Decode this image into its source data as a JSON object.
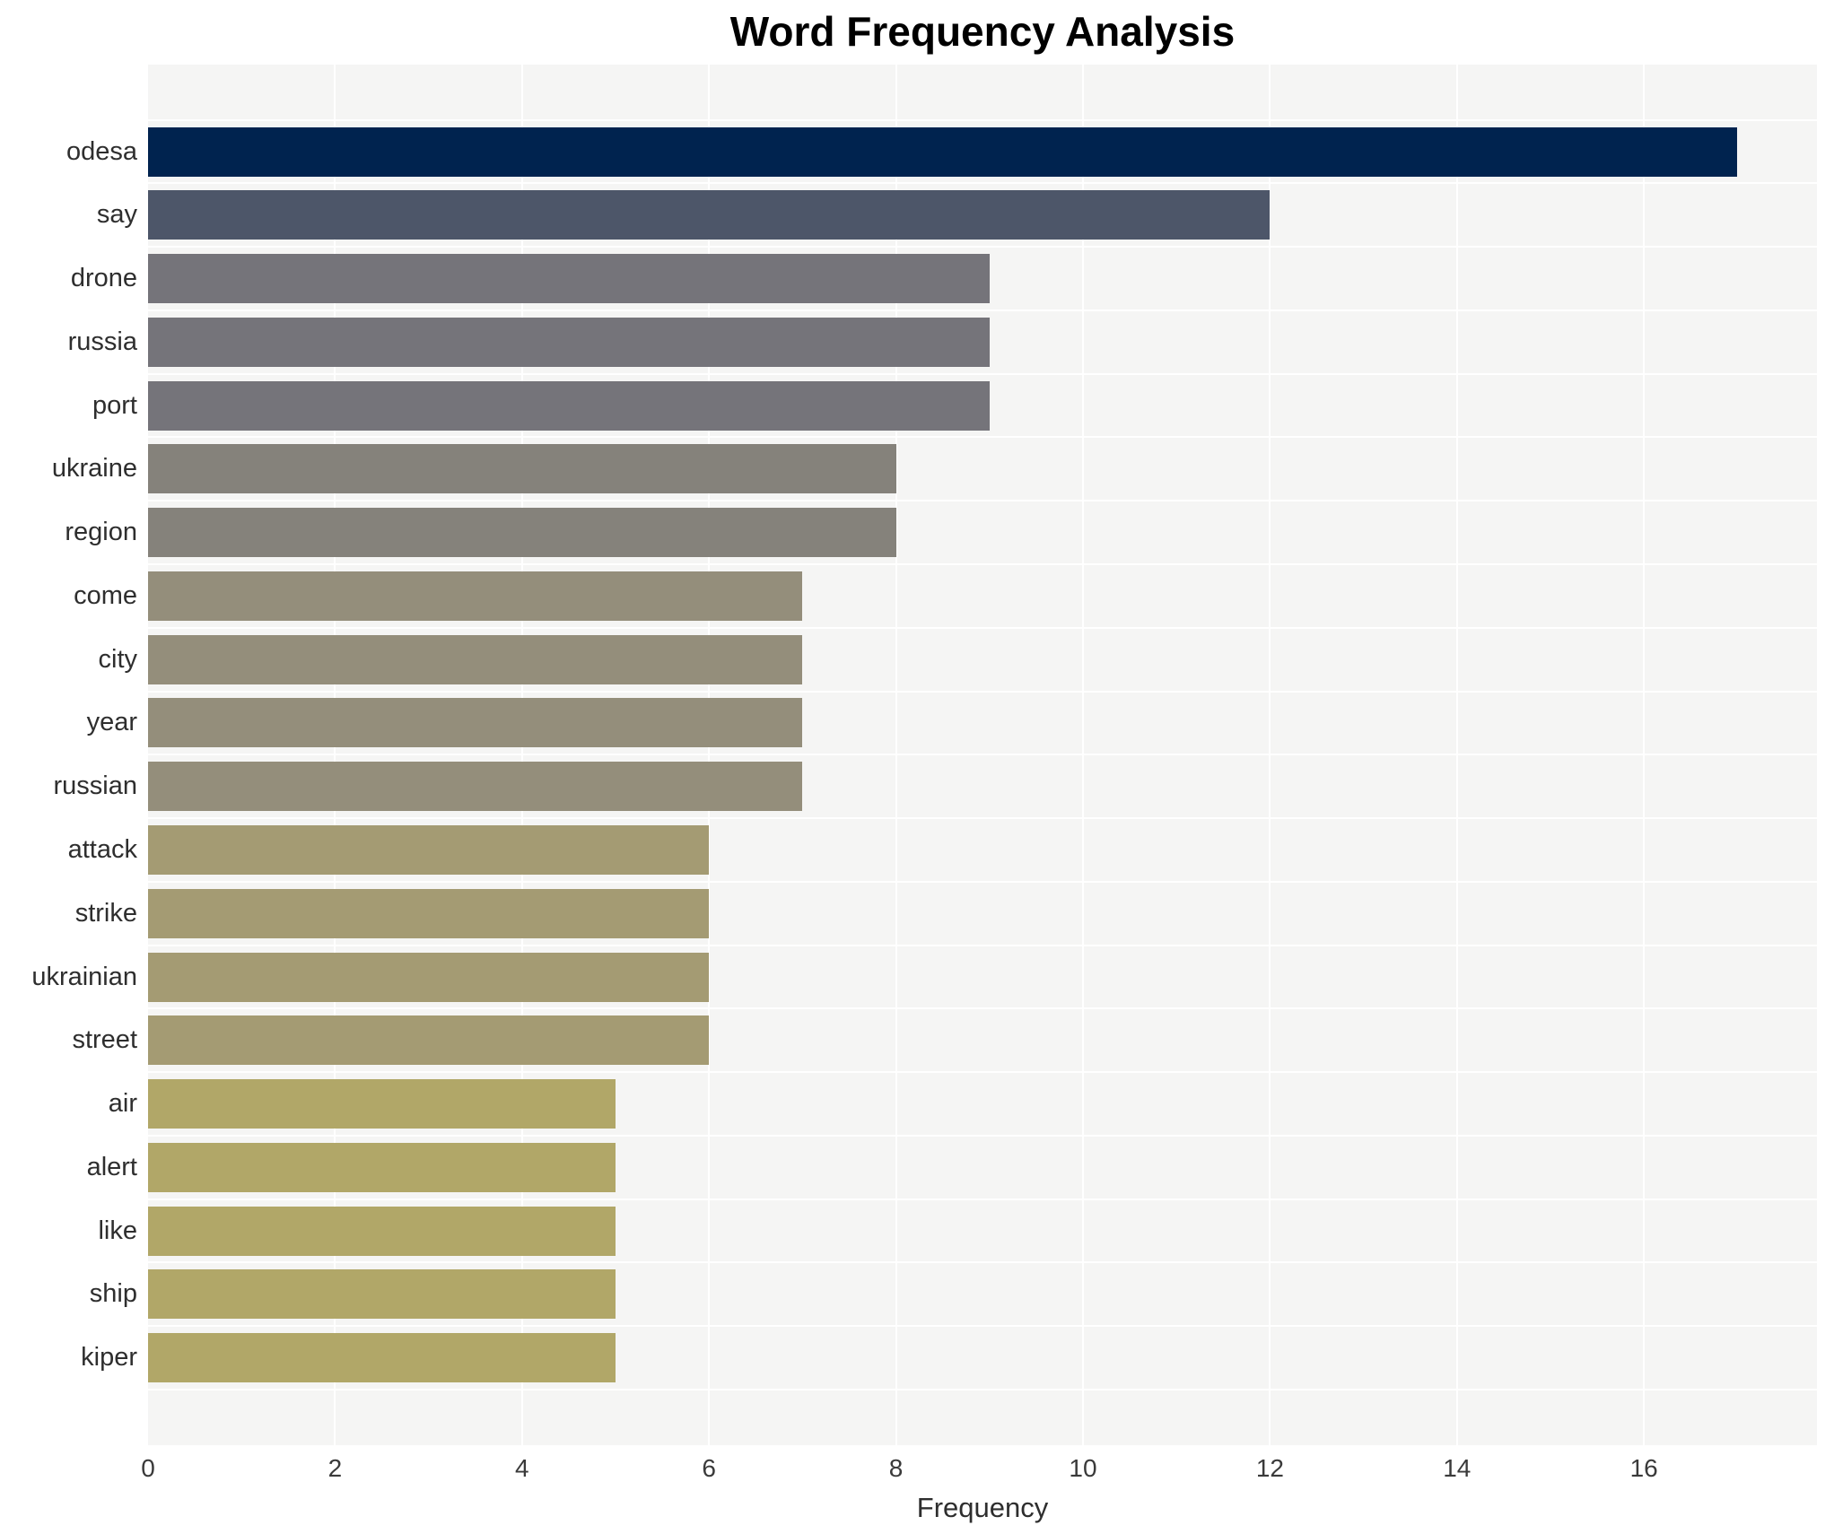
{
  "title": "Word Frequency Analysis",
  "chart_data": {
    "type": "bar",
    "orientation": "horizontal",
    "title": "Word Frequency Analysis",
    "xlabel": "Frequency",
    "ylabel": "",
    "categories": [
      "odesa",
      "say",
      "drone",
      "russia",
      "port",
      "ukraine",
      "region",
      "come",
      "city",
      "year",
      "russian",
      "attack",
      "strike",
      "ukrainian",
      "street",
      "air",
      "alert",
      "like",
      "ship",
      "kiper"
    ],
    "values": [
      17,
      12,
      9,
      9,
      9,
      8,
      8,
      7,
      7,
      7,
      7,
      6,
      6,
      6,
      6,
      5,
      5,
      5,
      5,
      5
    ],
    "bar_colors": [
      "#00234f",
      "#4d5669",
      "#75747a",
      "#75747a",
      "#75747a",
      "#85827b",
      "#85827b",
      "#948e7b",
      "#948e7b",
      "#948e7b",
      "#948e7b",
      "#a49b73",
      "#a49b73",
      "#a49b73",
      "#a49b73",
      "#b1a768",
      "#b1a768",
      "#b1a768",
      "#b1a768",
      "#b1a768"
    ],
    "x_ticks": [
      0,
      2,
      4,
      6,
      8,
      10,
      12,
      14,
      16
    ],
    "xlim": [
      0,
      17.85
    ],
    "grid": true,
    "legend": false,
    "colors": {
      "plot_background": "#f5f5f4",
      "gridline": "#ffffff",
      "title_text": "#000000",
      "tick_text": "#3a3a3a",
      "label_text": "#2e2e2e"
    }
  }
}
